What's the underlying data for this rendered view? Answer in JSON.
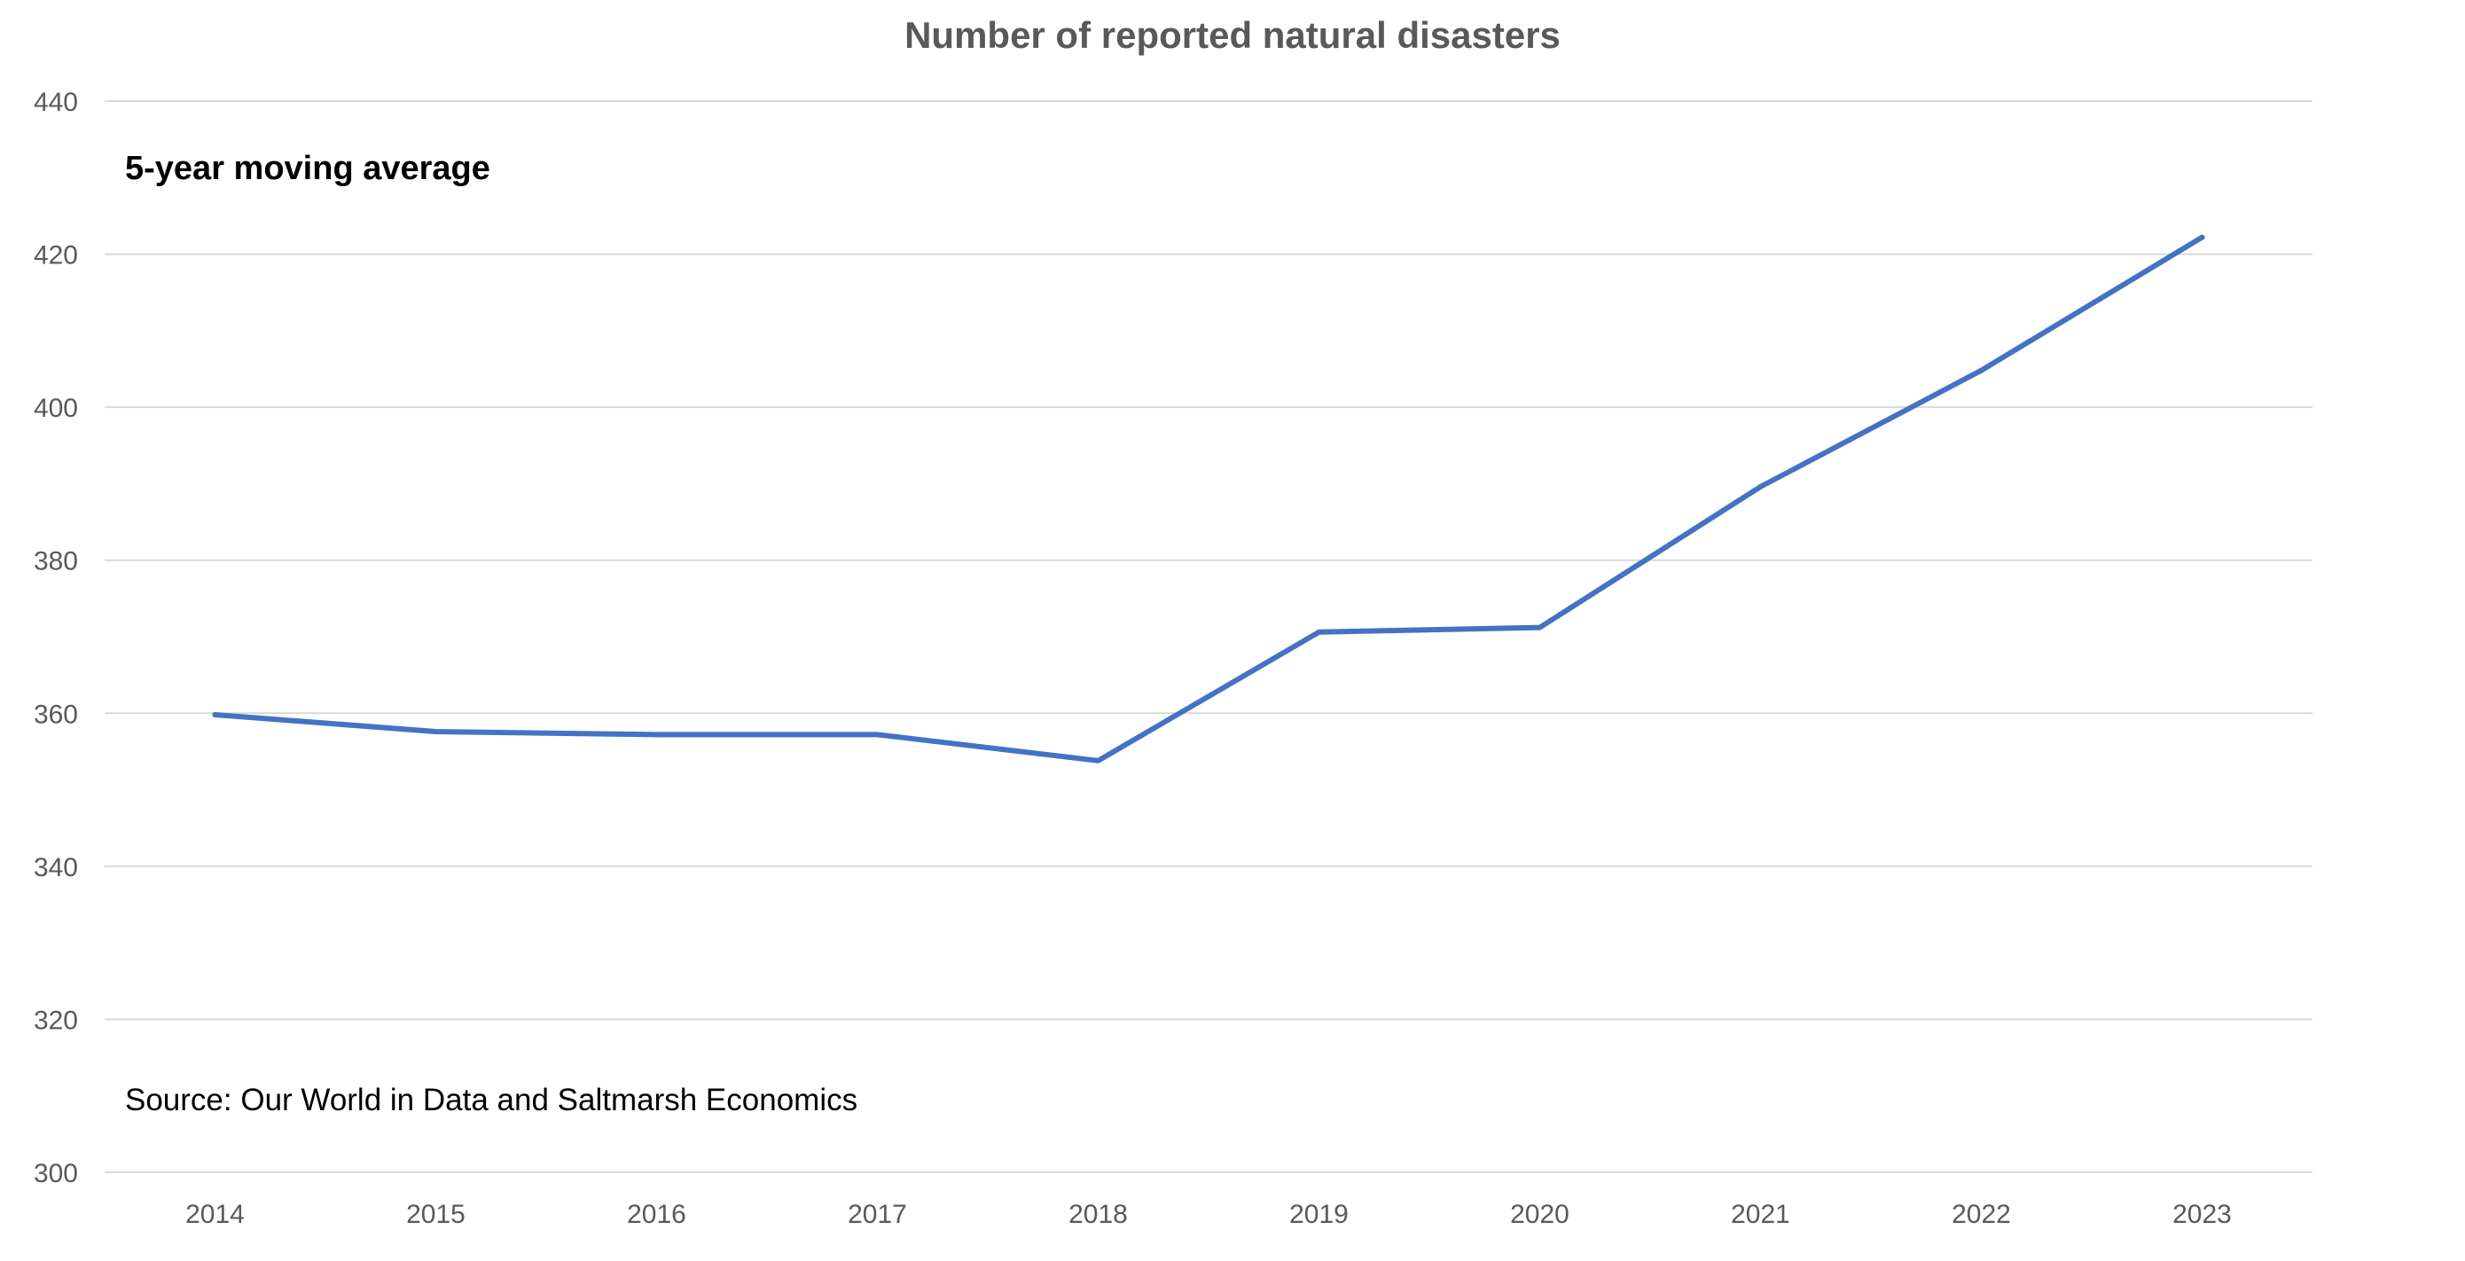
{
  "chart_data": {
    "type": "line",
    "title": "Number of reported natural disasters",
    "xlabel": "",
    "ylabel": "",
    "categories": [
      "2014",
      "2015",
      "2016",
      "2017",
      "2018",
      "2019",
      "2020",
      "2021",
      "2022",
      "2023"
    ],
    "series": [
      {
        "color": "#4472c4",
        "values": [
          359.8,
          357.6,
          357.2,
          357.2,
          353.8,
          370.6,
          371.2,
          389.6,
          404.8,
          422.2
        ]
      }
    ],
    "ylim": [
      300,
      440
    ],
    "yticks": [
      300,
      320,
      340,
      360,
      380,
      400,
      420,
      440
    ],
    "grid": true,
    "legend": "none",
    "annotations": {
      "subtitle": "5-year moving average",
      "source": "Source: Our World in Data and Saltmarsh Economics"
    },
    "colors": {
      "line": "#4472c4",
      "grid": "#d9d9d9",
      "axis_text": "#595959"
    }
  }
}
